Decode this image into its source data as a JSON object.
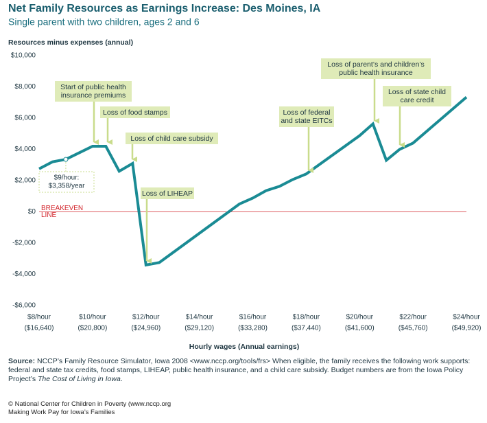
{
  "chart_data": {
    "type": "line",
    "title": "Net Family Resources as Earnings Increase: Des Moines, IA",
    "subtitle": "Single parent with two children, ages 2 and 6",
    "y_label": "Resources minus expenses (annual)",
    "x_label": "Hourly wages (Annual earnings)",
    "xlim": [
      8,
      24
    ],
    "ylim": [
      -6000,
      10000
    ],
    "xticks": [
      {
        "value": 8,
        "label": "$8/hour",
        "sublabel": "($16,640)"
      },
      {
        "value": 10,
        "label": "$10/hour",
        "sublabel": "($20,800)"
      },
      {
        "value": 12,
        "label": "$12/hour",
        "sublabel": "($24,960)"
      },
      {
        "value": 14,
        "label": "$14/hour",
        "sublabel": "($29,120)"
      },
      {
        "value": 16,
        "label": "$16/hour",
        "sublabel": "($33,280)"
      },
      {
        "value": 18,
        "label": "$18/hour",
        "sublabel": "($37,440)"
      },
      {
        "value": 20,
        "label": "$20/hour",
        "sublabel": "($41,600)"
      },
      {
        "value": 22,
        "label": "$22/hour",
        "sublabel": "($45,760)"
      },
      {
        "value": 24,
        "label": "$24/hour",
        "sublabel": "($49,920)"
      }
    ],
    "yticks": [
      {
        "value": 10000,
        "label": "$10,000"
      },
      {
        "value": 8000,
        "label": "$8,000"
      },
      {
        "value": 6000,
        "label": "$6,000"
      },
      {
        "value": 4000,
        "label": "$4,000"
      },
      {
        "value": 2000,
        "label": "$2,000"
      },
      {
        "value": 0,
        "label": "$0"
      },
      {
        "value": -2000,
        "label": "-$2,000"
      },
      {
        "value": -4000,
        "label": "-$4,000"
      },
      {
        "value": -6000,
        "label": "-$6,000"
      }
    ],
    "reference_line": {
      "value": 0,
      "color": "#d2232a",
      "lines": [
        "BREAKEVEN",
        "LINE"
      ]
    },
    "series": [
      {
        "name": "Net family resources",
        "color": "#1a8b94",
        "x": [
          8,
          8.5,
          9,
          10,
          10.5,
          11,
          11.5,
          12,
          12.5,
          15.5,
          16,
          16.5,
          17,
          17.5,
          18,
          19,
          20,
          20.5,
          21,
          21.5,
          22,
          24
        ],
        "values": [
          2750,
          3200,
          3358,
          4200,
          4200,
          2600,
          3100,
          -3400,
          -3250,
          500,
          880,
          1360,
          1630,
          2070,
          2420,
          3650,
          4880,
          5630,
          3300,
          4000,
          4400,
          7340
        ]
      }
    ],
    "point_label": {
      "point": 2,
      "lines": [
        "$9/hour:",
        "$3,358/year"
      ]
    },
    "annotations": [
      {
        "lines": [
          "Start of public health",
          "insurance premiums"
        ]
      },
      {
        "lines": [
          "Loss of food stamps"
        ]
      },
      {
        "lines": [
          "Loss of child care subsidy"
        ]
      },
      {
        "lines": [
          "Loss of LIHEAP"
        ]
      },
      {
        "lines": [
          "Loss of federal",
          "and state EITCs"
        ]
      },
      {
        "lines": [
          "Loss of parent’s and children’s",
          "public health insurance"
        ]
      },
      {
        "lines": [
          "Loss of state child",
          "care credit"
        ]
      }
    ]
  },
  "source": {
    "label": "Source:",
    "text": " NCCP’s Family Resource Simulator, Iowa 2008 <www.nccp.org/tools/frs> When eligible, the family receives the following work supports: federal and state tax credits, food stamps, LIHEAP, public health insurance, and a child care subsidy. Budget numbers are from the Iowa Policy Project’s ",
    "title": "The Cost of Living in Iowa",
    "end": "."
  },
  "footer": [
    "© National Center for Children in Poverty (www.nccp.org",
    "Making Work Pay for Iowa’s Families"
  ]
}
